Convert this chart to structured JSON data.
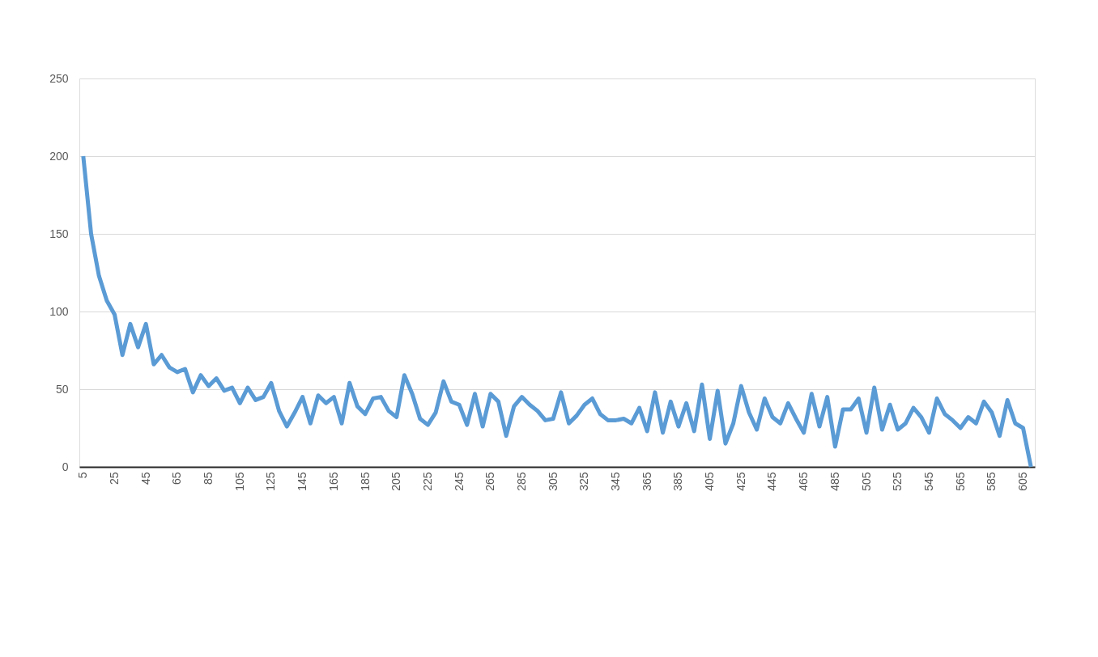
{
  "chart_data": {
    "type": "line",
    "categories": [
      "5",
      null,
      null,
      null,
      "25",
      null,
      null,
      null,
      "45",
      null,
      null,
      null,
      "65",
      null,
      null,
      null,
      "85",
      null,
      null,
      null,
      "105",
      null,
      null,
      null,
      "125",
      null,
      null,
      null,
      "145",
      null,
      null,
      null,
      "165",
      null,
      null,
      null,
      "185",
      null,
      null,
      null,
      "205",
      null,
      null,
      null,
      "225",
      null,
      null,
      null,
      "245",
      null,
      null,
      null,
      "265",
      null,
      null,
      null,
      "285",
      null,
      null,
      null,
      "305",
      null,
      null,
      null,
      "325",
      null,
      null,
      null,
      "345",
      null,
      null,
      null,
      "365",
      null,
      null,
      null,
      "385",
      null,
      null,
      null,
      "405",
      null,
      null,
      null,
      "425",
      null,
      null,
      null,
      "445",
      null,
      null,
      null,
      "465",
      null,
      null,
      null,
      "485",
      null,
      null,
      null,
      "505",
      null,
      null,
      null,
      "525",
      null,
      null,
      null,
      "545",
      null,
      null,
      null,
      "565",
      null,
      null,
      null,
      "585",
      null,
      null,
      null,
      "605",
      null
    ],
    "series": [
      {
        "color": "#5b9bd5",
        "values": [
          200,
          150,
          123,
          107,
          98,
          72,
          92,
          77,
          92,
          66,
          72,
          64,
          61,
          63,
          48,
          59,
          52,
          57,
          49,
          51,
          41,
          51,
          43,
          45,
          54,
          36,
          26,
          35,
          45,
          28,
          46,
          41,
          45,
          28,
          54,
          39,
          34,
          44,
          45,
          36,
          32,
          59,
          47,
          31,
          27,
          35,
          55,
          42,
          40,
          27,
          47,
          26,
          47,
          42,
          20,
          39,
          45,
          40,
          36,
          30,
          31,
          48,
          28,
          33,
          40,
          44,
          34,
          30,
          30,
          31,
          28,
          38,
          23,
          48,
          22,
          42,
          26,
          41,
          23,
          53,
          18,
          49,
          15,
          28,
          52,
          35,
          24,
          44,
          32,
          28,
          41,
          31,
          22,
          47,
          26,
          45,
          13,
          37,
          37,
          44,
          22,
          51,
          24,
          40,
          24,
          28,
          38,
          32,
          22,
          44,
          34,
          30,
          25,
          32,
          28,
          42,
          35,
          20,
          43,
          28,
          25,
          0
        ]
      }
    ],
    "ylim": [
      0,
      250
    ],
    "yticks": [
      0,
      50,
      100,
      150,
      200,
      250
    ],
    "grid": "y",
    "marker": "none",
    "line_style": "solid"
  }
}
